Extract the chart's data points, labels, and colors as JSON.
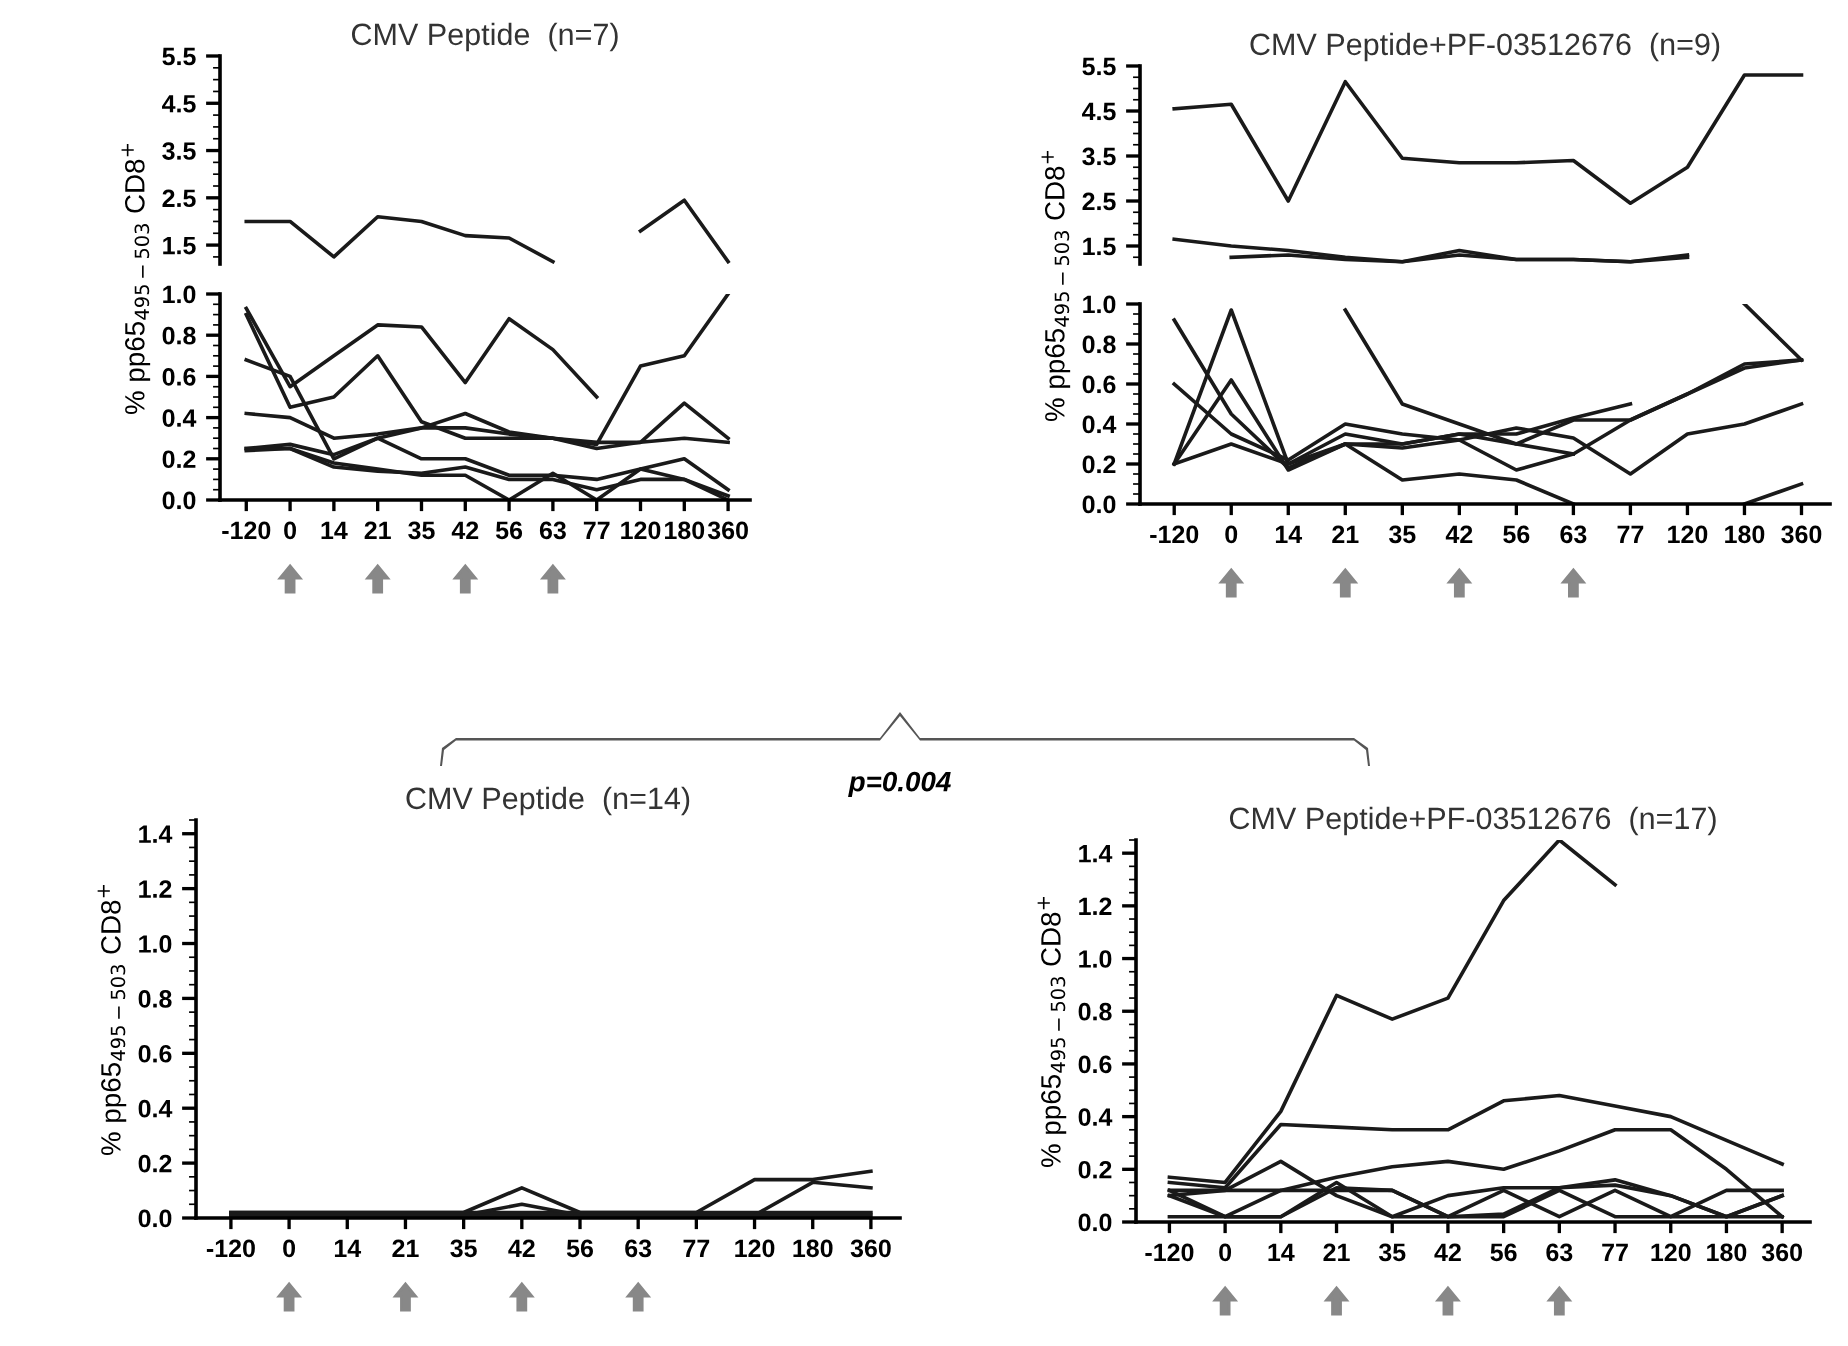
{
  "chart_data": [
    {
      "type": "line",
      "title": "CMV Peptide  (n=7)",
      "tick_labels": "y",
      "categories": [
        "-120",
        "0",
        "14",
        "21",
        "35",
        "42",
        "56",
        "63",
        "77",
        "120",
        "180",
        "360"
      ],
      "ylim": [
        1.1,
        5.5
      ],
      "yticks": [
        1.5,
        2.5,
        3.5,
        4.5,
        5.5
      ],
      "series": [
        {
          "color": "#1a1a1a",
          "values": [
            2.0,
            2.0,
            1.25,
            2.1,
            2.0,
            1.7,
            1.65,
            1.15,
            null,
            null,
            null,
            null
          ]
        },
        {
          "color": "#1a1a1a",
          "values": [
            null,
            null,
            null,
            null,
            null,
            null,
            null,
            null,
            null,
            1.8,
            2.45,
            1.15
          ]
        }
      ]
    },
    {
      "type": "line",
      "ylabel": "% pp65$_{495−503}$ CD8$^{+}$",
      "categories": [
        "-120",
        "0",
        "14",
        "21",
        "35",
        "42",
        "56",
        "63",
        "77",
        "120",
        "180",
        "360"
      ],
      "ylim": [
        0,
        1.0
      ],
      "yticks": [
        {
          "value": 0,
          "label": "0.0"
        },
        {
          "value": 0.2,
          "label": "0.2"
        },
        {
          "value": 0.4,
          "label": "0.4"
        },
        {
          "value": 0.6,
          "label": "0.6"
        },
        {
          "value": 0.8,
          "label": "0.8"
        },
        {
          "value": 1.0,
          "label": "1.0"
        }
      ],
      "series": [
        {
          "color": "#1a1a1a",
          "values": [
            0.93,
            0.55,
            0.7,
            0.85,
            0.84,
            0.57,
            0.88,
            0.73,
            0.5,
            null,
            null,
            null
          ]
        },
        {
          "color": "#1a1a1a",
          "values": [
            0.68,
            0.6,
            0.2,
            0.3,
            0.2,
            0.2,
            0.12,
            0.12,
            0.1,
            0.15,
            0.2,
            0.05
          ]
        },
        {
          "color": "#1a1a1a",
          "values": [
            0.9,
            0.45,
            0.5,
            0.7,
            0.38,
            0.3,
            0.3,
            0.3,
            0.27,
            0.65,
            0.7,
            1.0
          ]
        },
        {
          "color": "#1a1a1a",
          "values": [
            0.42,
            0.4,
            0.3,
            0.32,
            0.35,
            0.42,
            0.33,
            0.3,
            0.28,
            0.28,
            0.47,
            0.3
          ]
        },
        {
          "color": "#1a1a1a",
          "values": [
            0.25,
            0.27,
            0.22,
            0.3,
            0.35,
            0.35,
            0.32,
            0.3,
            0.25,
            0.28,
            0.3,
            0.28
          ]
        },
        {
          "color": "#1a1a1a",
          "values": [
            0.25,
            0.25,
            0.18,
            0.15,
            0.12,
            0.12,
            0.0,
            0.13,
            0.0,
            0.15,
            0.1,
            0.02
          ]
        },
        {
          "color": "#1a1a1a",
          "values": [
            0.24,
            0.25,
            0.16,
            0.14,
            0.13,
            0.16,
            0.1,
            0.1,
            0.05,
            0.1,
            0.1,
            0.0
          ]
        }
      ]
    },
    {
      "type": "line",
      "title": "CMV Peptide+PF-03512676  (n=9)",
      "tick_labels": "y",
      "categories": [
        "-120",
        "0",
        "14",
        "21",
        "35",
        "42",
        "56",
        "63",
        "77",
        "120",
        "180",
        "360"
      ],
      "ylim": [
        1.1,
        5.5
      ],
      "yticks": [
        1.5,
        2.5,
        3.5,
        4.5,
        5.5
      ],
      "series": [
        {
          "color": "#1a1a1a",
          "values": [
            4.55,
            4.65,
            2.5,
            5.15,
            3.45,
            3.35,
            3.35,
            3.4,
            2.45,
            3.25,
            5.3,
            5.3
          ]
        },
        {
          "color": "#1a1a1a",
          "values": [
            1.65,
            1.5,
            1.4,
            1.25,
            1.15,
            1.4,
            1.2,
            1.2,
            1.15,
            1.3,
            null,
            null
          ]
        },
        {
          "color": "#1a1a1a",
          "values": [
            null,
            1.25,
            1.3,
            1.2,
            1.15,
            1.3,
            1.2,
            1.2,
            1.15,
            1.25,
            null,
            null
          ]
        }
      ]
    },
    {
      "type": "line",
      "ylabel": "% pp65$_{495−503}$ CD8$^{+}$",
      "categories": [
        "-120",
        "0",
        "14",
        "21",
        "35",
        "42",
        "56",
        "63",
        "77",
        "120",
        "180",
        "360"
      ],
      "ylim": [
        0,
        1.0
      ],
      "yticks": [
        {
          "value": 0,
          "label": "0.0"
        },
        {
          "value": 0.2,
          "label": "0.2"
        },
        {
          "value": 0.4,
          "label": "0.4"
        },
        {
          "value": 0.6,
          "label": "0.6"
        },
        {
          "value": 0.8,
          "label": "0.8"
        },
        {
          "value": 1.0,
          "label": "1.0"
        }
      ],
      "series": [
        {
          "color": "#1a1a1a",
          "values": [
            0.92,
            0.45,
            0.18,
            0.3,
            0.3,
            0.35,
            0.35,
            0.43,
            0.5,
            null,
            null,
            null
          ]
        },
        {
          "color": "#1a1a1a",
          "values": [
            0.2,
            0.97,
            0.2,
            0.35,
            0.3,
            0.35,
            0.3,
            0.42,
            0.42,
            0.55,
            0.7,
            0.72
          ]
        },
        {
          "color": "#1a1a1a",
          "values": [
            0.6,
            0.35,
            0.22,
            0.4,
            0.35,
            0.32,
            0.17,
            0.25,
            0.42,
            0.55,
            0.68,
            0.72
          ]
        },
        {
          "color": "#1a1a1a",
          "values": [
            0.2,
            0.62,
            0.17,
            0.3,
            0.12,
            0.15,
            0.12,
            0.0,
            null,
            null,
            0.0,
            0.1
          ]
        },
        {
          "color": "#1a1a1a",
          "values": [
            0.2,
            0.3,
            0.2,
            0.3,
            0.28,
            0.32,
            0.38,
            0.33,
            0.15,
            0.35,
            0.4,
            0.5
          ]
        },
        {
          "color": "#1a1a1a",
          "values": [
            null,
            null,
            null,
            0.97,
            0.5,
            0.4,
            0.3,
            0.25,
            null,
            null,
            null,
            null
          ]
        },
        {
          "color": "#1a1a1a",
          "values": [
            null,
            null,
            null,
            null,
            null,
            null,
            null,
            null,
            null,
            null,
            1.0,
            0.72
          ]
        }
      ]
    },
    {
      "type": "line",
      "title": "CMV Peptide  (n=14)",
      "ylabel": "% pp65$_{495−503}$ CD8$^{+}$",
      "annotations": [
        "p=0.004"
      ],
      "categories": [
        "-120",
        "0",
        "14",
        "21",
        "35",
        "42",
        "56",
        "63",
        "77",
        "120",
        "180",
        "360"
      ],
      "ylim": [
        0,
        1.45
      ],
      "yticks": [
        {
          "value": 0,
          "label": "0.0"
        },
        {
          "value": 0.2,
          "label": "0.2"
        },
        {
          "value": 0.4,
          "label": "0.4"
        },
        {
          "value": 0.6,
          "label": "0.6"
        },
        {
          "value": 0.8,
          "label": "0.8"
        },
        {
          "value": 1.0,
          "label": "1.0"
        },
        {
          "value": 1.2,
          "label": "1.2"
        },
        {
          "value": 1.4,
          "label": "1.4"
        }
      ],
      "series": [
        {
          "color": "#1a1a1a",
          "values": [
            0.02,
            0.02,
            0.02,
            0.02,
            0.02,
            0.11,
            0.02,
            0.02,
            0.02,
            0.02,
            0.02,
            0.02
          ]
        },
        {
          "color": "#1a1a1a",
          "values": [
            0.02,
            0.02,
            0.02,
            0.02,
            0.02,
            0.02,
            0.02,
            0.02,
            0.02,
            0.14,
            0.14,
            0.17
          ]
        },
        {
          "color": "#1a1a1a",
          "values": [
            0.01,
            0.01,
            0.01,
            0.01,
            0.01,
            0.01,
            0.01,
            0.01,
            0.01,
            0.01,
            0.13,
            0.11
          ]
        },
        {
          "color": "#1a1a1a",
          "values": [
            0.01,
            0.01,
            0.01,
            0.01,
            0.01,
            0.05,
            0.01,
            0.01,
            0.01,
            0.01,
            0.01,
            0.01
          ]
        }
      ]
    },
    {
      "type": "line",
      "title": "CMV Peptide+PF-03512676  (n=17)",
      "ylabel": "% pp65$_{495−503}$ CD8$^{+}$",
      "categories": [
        "-120",
        "0",
        "14",
        "21",
        "35",
        "42",
        "56",
        "63",
        "77",
        "120",
        "180",
        "360"
      ],
      "ylim": [
        0,
        1.45
      ],
      "yticks": [
        {
          "value": 0,
          "label": "0.0"
        },
        {
          "value": 0.2,
          "label": "0.2"
        },
        {
          "value": 0.4,
          "label": "0.4"
        },
        {
          "value": 0.6,
          "label": "0.6"
        },
        {
          "value": 0.8,
          "label": "0.8"
        },
        {
          "value": 1.0,
          "label": "1.0"
        },
        {
          "value": 1.2,
          "label": "1.2"
        },
        {
          "value": 1.4,
          "label": "1.4"
        }
      ],
      "series": [
        {
          "color": "#1a1a1a",
          "values": [
            0.17,
            0.15,
            0.42,
            0.86,
            0.77,
            0.85,
            1.22,
            1.45,
            1.28,
            null,
            null,
            null
          ]
        },
        {
          "color": "#1a1a1a",
          "values": [
            0.15,
            0.13,
            0.37,
            0.36,
            0.35,
            0.35,
            0.46,
            0.48,
            0.44,
            0.4,
            0.31,
            0.22
          ]
        },
        {
          "color": "#1a1a1a",
          "values": [
            0.12,
            0.12,
            0.23,
            0.1,
            0.02,
            0.02,
            0.03,
            0.13,
            0.16,
            0.1,
            0.02,
            0.1
          ]
        },
        {
          "color": "#1a1a1a",
          "values": [
            0.1,
            0.12,
            0.12,
            0.17,
            0.21,
            0.23,
            0.2,
            0.27,
            0.35,
            0.35,
            0.2,
            0.02
          ]
        },
        {
          "color": "#1a1a1a",
          "values": [
            0.12,
            0.02,
            0.12,
            0.12,
            0.12,
            0.02,
            0.12,
            0.02,
            0.12,
            0.02,
            0.12,
            0.12
          ]
        },
        {
          "color": "#1a1a1a",
          "values": [
            0.02,
            0.02,
            0.02,
            0.15,
            0.02,
            0.1,
            0.13,
            0.13,
            0.14,
            0.1,
            0.02,
            0.1
          ]
        },
        {
          "color": "#1a1a1a",
          "values": [
            0.1,
            0.02,
            0.02,
            0.13,
            0.12,
            0.02,
            0.02,
            0.12,
            0.02,
            0.02,
            0.02,
            0.02
          ]
        }
      ]
    }
  ]
}
